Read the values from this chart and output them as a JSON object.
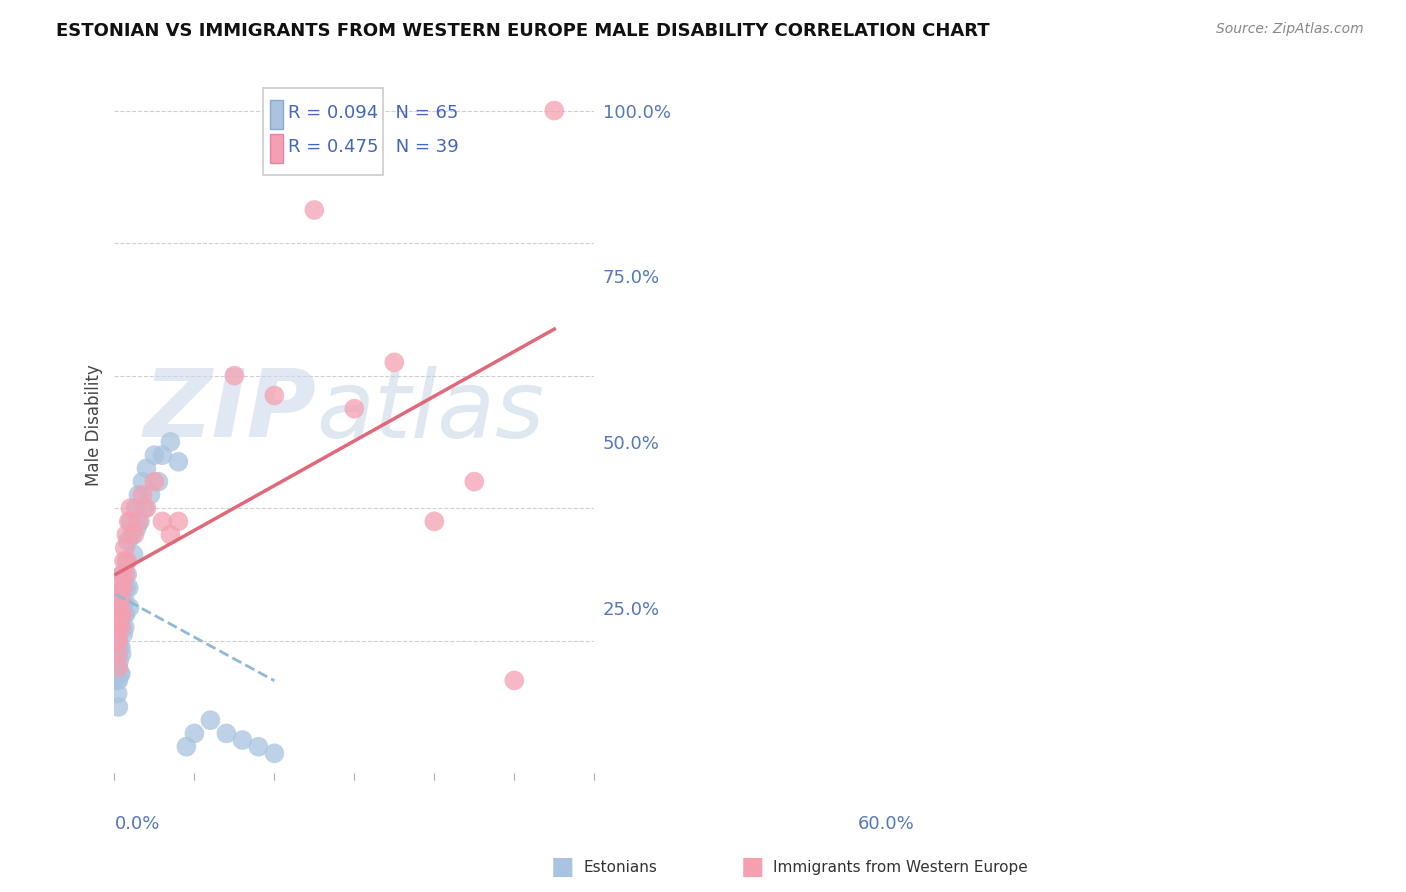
{
  "title": "ESTONIAN VS IMMIGRANTS FROM WESTERN EUROPE MALE DISABILITY CORRELATION CHART",
  "source": "Source: ZipAtlas.com",
  "ylabel": "Male Disability",
  "right_yticks": [
    "100.0%",
    "75.0%",
    "50.0%",
    "25.0%"
  ],
  "right_ytick_vals": [
    1.0,
    0.75,
    0.5,
    0.25
  ],
  "xlim": [
    0.0,
    0.6
  ],
  "ylim": [
    0.0,
    1.05
  ],
  "R_estonians": 0.094,
  "N_estonians": 65,
  "R_immigrants": 0.475,
  "N_immigrants": 39,
  "legend_label_estonians": "Estonians",
  "legend_label_immigrants": "Immigrants from Western Europe",
  "color_estonians": "#a8c4e0",
  "color_immigrants": "#f4a0b0",
  "trendline_color_estonians": "#90b8d8",
  "trendline_color_immigrants": "#e06878",
  "watermark_zip": "ZIP",
  "watermark_atlas": "atlas",
  "background_color": "#ffffff",
  "estonians_x": [
    0.002,
    0.002,
    0.003,
    0.003,
    0.003,
    0.004,
    0.004,
    0.004,
    0.004,
    0.005,
    0.005,
    0.005,
    0.005,
    0.005,
    0.006,
    0.006,
    0.006,
    0.007,
    0.007,
    0.007,
    0.008,
    0.008,
    0.008,
    0.008,
    0.009,
    0.009,
    0.01,
    0.01,
    0.01,
    0.011,
    0.011,
    0.012,
    0.012,
    0.013,
    0.013,
    0.014,
    0.015,
    0.015,
    0.016,
    0.017,
    0.018,
    0.019,
    0.02,
    0.022,
    0.024,
    0.026,
    0.028,
    0.03,
    0.032,
    0.035,
    0.038,
    0.04,
    0.045,
    0.05,
    0.055,
    0.06,
    0.07,
    0.08,
    0.09,
    0.1,
    0.12,
    0.14,
    0.16,
    0.18,
    0.2
  ],
  "estonians_y": [
    0.2,
    0.16,
    0.22,
    0.18,
    0.14,
    0.24,
    0.2,
    0.16,
    0.12,
    0.26,
    0.22,
    0.18,
    0.14,
    0.1,
    0.25,
    0.21,
    0.17,
    0.23,
    0.19,
    0.15,
    0.27,
    0.23,
    0.19,
    0.15,
    0.22,
    0.18,
    0.3,
    0.26,
    0.22,
    0.25,
    0.21,
    0.28,
    0.24,
    0.26,
    0.22,
    0.24,
    0.32,
    0.28,
    0.3,
    0.35,
    0.28,
    0.25,
    0.38,
    0.36,
    0.33,
    0.4,
    0.37,
    0.42,
    0.38,
    0.44,
    0.4,
    0.46,
    0.42,
    0.48,
    0.44,
    0.48,
    0.5,
    0.47,
    0.04,
    0.06,
    0.08,
    0.06,
    0.05,
    0.04,
    0.03
  ],
  "immigrants_x": [
    0.002,
    0.003,
    0.004,
    0.004,
    0.005,
    0.005,
    0.006,
    0.006,
    0.007,
    0.008,
    0.008,
    0.009,
    0.01,
    0.01,
    0.011,
    0.012,
    0.013,
    0.014,
    0.015,
    0.016,
    0.018,
    0.02,
    0.025,
    0.03,
    0.035,
    0.04,
    0.05,
    0.06,
    0.07,
    0.08,
    0.15,
    0.2,
    0.25,
    0.3,
    0.35,
    0.4,
    0.45,
    0.5,
    0.55
  ],
  "immigrants_y": [
    0.2,
    0.22,
    0.18,
    0.24,
    0.16,
    0.2,
    0.22,
    0.26,
    0.24,
    0.28,
    0.22,
    0.26,
    0.3,
    0.24,
    0.28,
    0.32,
    0.34,
    0.3,
    0.36,
    0.32,
    0.38,
    0.4,
    0.36,
    0.38,
    0.42,
    0.4,
    0.44,
    0.38,
    0.36,
    0.38,
    0.6,
    0.57,
    0.85,
    0.55,
    0.62,
    0.38,
    0.44,
    0.14,
    1.0
  ]
}
